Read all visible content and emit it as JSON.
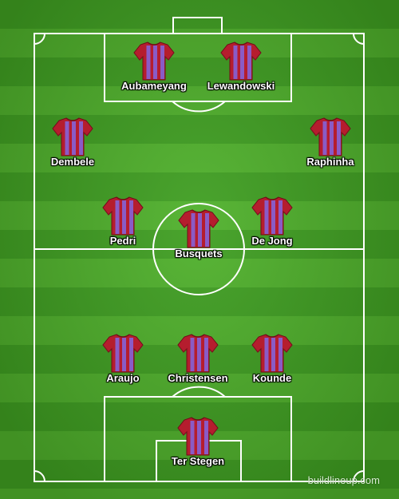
{
  "colors": {
    "stripe_light": "#4fb12b",
    "stripe_dark": "#3f9f21",
    "shirt_red": "#b51d2e",
    "shirt_purple": "#8a5bc6",
    "lines": "#ffffff"
  },
  "watermark": "buildlineup.com",
  "players": [
    {
      "name": "Aubameyang"
    },
    {
      "name": "Lewandowski"
    },
    {
      "name": "Dembele"
    },
    {
      "name": "Raphinha"
    },
    {
      "name": "Pedri"
    },
    {
      "name": "Busquets"
    },
    {
      "name": "De Jong"
    },
    {
      "name": "Araujo"
    },
    {
      "name": "Christensen"
    },
    {
      "name": "Kounde"
    },
    {
      "name": "Ter Stegen"
    }
  ]
}
